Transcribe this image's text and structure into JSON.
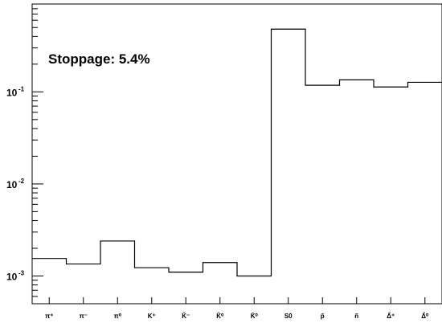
{
  "chart_data": {
    "type": "bar",
    "style": "step-histogram",
    "title": "",
    "xlabel": "",
    "ylabel": "",
    "yscale": "log",
    "ylim": [
      0.0005,
      0.9
    ],
    "categories": [
      "π⁺",
      "π⁻",
      "π⁰",
      "K⁺",
      "K̃⁻",
      "K̃⁰",
      "K̄⁰",
      "S0",
      "p̃",
      "ñ",
      "Δ̃⁺",
      "Δ̃⁰"
    ],
    "values": [
      0.00155,
      0.00135,
      0.0024,
      0.00123,
      0.0011,
      0.0014,
      0.001,
      0.48,
      0.118,
      0.135,
      0.113,
      0.127
    ],
    "ytick_labels": [
      {
        "base": "10",
        "exp": "-3",
        "value": 0.001
      },
      {
        "base": "10",
        "exp": "-2",
        "value": 0.01
      },
      {
        "base": "10",
        "exp": "-1",
        "value": 0.1
      }
    ],
    "annotation": "Stoppage: 5.4%",
    "grid": false,
    "line_color": "#000000"
  }
}
